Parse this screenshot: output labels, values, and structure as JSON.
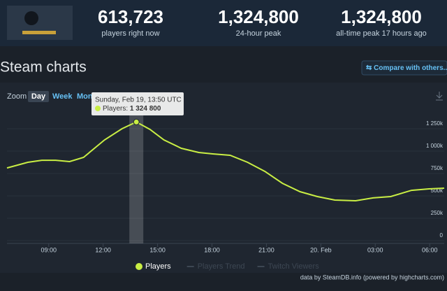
{
  "header": {
    "stats": [
      {
        "value": "613,723",
        "label": "players right now"
      },
      {
        "value": "1,324,800",
        "label": "24-hour peak"
      },
      {
        "value": "1,324,800",
        "label": "all-time peak 17 hours ago"
      }
    ]
  },
  "section_title": "Steam charts",
  "compare_button": "Compare with others...",
  "zoom": {
    "label": "Zoom",
    "options": [
      "Day",
      "Week",
      "Mon"
    ]
  },
  "tooltip": {
    "title": "Sunday, Feb 19, 13:50 UTC",
    "label": "Players:",
    "value": "1 324 800"
  },
  "credits": "data by SteamDB.info (powered by highcharts.com)",
  "chart_data": {
    "type": "line",
    "x": [
      6.7,
      7.85,
      8.62,
      9.38,
      10.15,
      10.92,
      12.08,
      13.04,
      13.83,
      14.58,
      15.35,
      16.31,
      17.27,
      18.04,
      19,
      19.96,
      20.92,
      21.88,
      22.85,
      23.81,
      24.77,
      25.92,
      26.88,
      27.85,
      29,
      29.96,
      30.8
    ],
    "series": [
      {
        "name": "Players",
        "color": "#c9ee44",
        "values": [
          812000,
          875000,
          898000,
          898000,
          883000,
          930000,
          1125000,
          1250000,
          1324800,
          1242000,
          1125000,
          1031000,
          984000,
          969000,
          953000,
          875000,
          773000,
          641000,
          547000,
          492000,
          453000,
          445000,
          477000,
          492000,
          562000,
          578000,
          586000
        ]
      }
    ],
    "inactive_series": [
      "Players Trend",
      "Twitch Viewers"
    ],
    "xlim": [
      6.7,
      30.8
    ],
    "xticks": [
      {
        "value": 9,
        "label": "09:00"
      },
      {
        "value": 12,
        "label": "12:00"
      },
      {
        "value": 15,
        "label": "15:00"
      },
      {
        "value": 18,
        "label": "18:00"
      },
      {
        "value": 21,
        "label": "21:00"
      },
      {
        "value": 24,
        "label": "20. Feb"
      },
      {
        "value": 27,
        "label": "03:00"
      },
      {
        "value": 30,
        "label": "06:00"
      }
    ],
    "ylim": [
      0,
      1250000
    ],
    "yticks": [
      0,
      {
        "value": 250000,
        "label": "250k"
      },
      {
        "value": 500000,
        "label": "500k"
      },
      {
        "value": 750000,
        "label": "750k"
      },
      {
        "value": 1000000,
        "label": "1 000k"
      },
      {
        "value": 1250000,
        "label": "1 250k"
      }
    ],
    "grid": true,
    "legend": "bottom"
  }
}
